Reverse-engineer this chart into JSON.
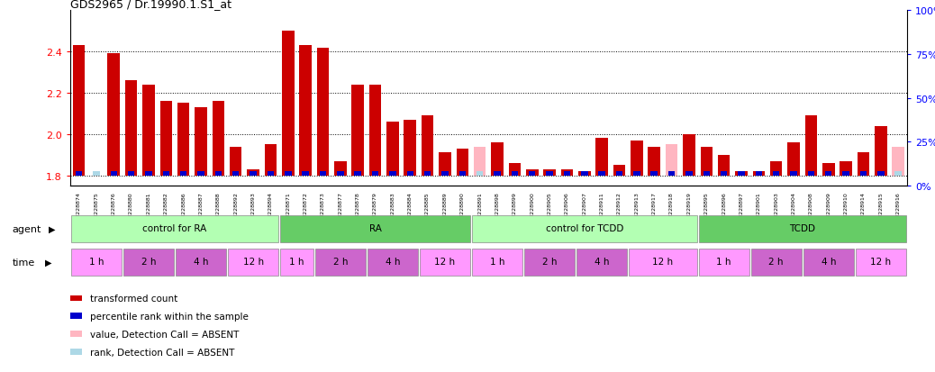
{
  "title": "GDS2965 / Dr.19990.1.S1_at",
  "samples": [
    "GSM228874",
    "GSM228875",
    "GSM228876",
    "GSM228880",
    "GSM228881",
    "GSM228882",
    "GSM228886",
    "GSM228887",
    "GSM228888",
    "GSM228892",
    "GSM228893",
    "GSM228894",
    "GSM228871",
    "GSM228872",
    "GSM228873",
    "GSM228877",
    "GSM228878",
    "GSM228879",
    "GSM228883",
    "GSM228884",
    "GSM228885",
    "GSM228889",
    "GSM228890",
    "GSM228891",
    "GSM228898",
    "GSM228899",
    "GSM228900",
    "GSM228905",
    "GSM228906",
    "GSM228907",
    "GSM228911",
    "GSM228912",
    "GSM228913",
    "GSM228917",
    "GSM228918",
    "GSM228919",
    "GSM228895",
    "GSM228896",
    "GSM228897",
    "GSM228901",
    "GSM228903",
    "GSM228904",
    "GSM228908",
    "GSM228909",
    "GSM228910",
    "GSM228914",
    "GSM228915",
    "GSM228916"
  ],
  "red_values": [
    2.43,
    1.8,
    2.39,
    2.26,
    2.24,
    2.16,
    2.15,
    2.13,
    2.16,
    1.94,
    1.83,
    1.95,
    2.5,
    2.43,
    2.42,
    1.87,
    2.24,
    2.24,
    2.06,
    2.07,
    2.09,
    1.91,
    1.93,
    1.94,
    1.96,
    1.86,
    1.83,
    1.83,
    1.83,
    1.82,
    1.98,
    1.85,
    1.97,
    1.94,
    1.95,
    2.0,
    1.94,
    1.9,
    1.82,
    1.82,
    1.87,
    1.96,
    2.09,
    1.86,
    1.87,
    1.91,
    2.04,
    1.94
  ],
  "absent_red": [
    false,
    true,
    false,
    false,
    false,
    false,
    false,
    false,
    false,
    false,
    false,
    false,
    false,
    false,
    false,
    false,
    false,
    false,
    false,
    false,
    false,
    false,
    false,
    true,
    false,
    false,
    false,
    false,
    false,
    false,
    false,
    false,
    false,
    false,
    true,
    false,
    false,
    false,
    false,
    false,
    false,
    false,
    false,
    false,
    false,
    false,
    false,
    true
  ],
  "absent_blue": [
    false,
    true,
    false,
    false,
    false,
    false,
    false,
    false,
    false,
    false,
    false,
    false,
    false,
    false,
    false,
    false,
    false,
    false,
    false,
    false,
    false,
    false,
    false,
    true,
    false,
    false,
    false,
    false,
    false,
    false,
    false,
    false,
    false,
    false,
    false,
    false,
    false,
    false,
    false,
    false,
    false,
    false,
    false,
    false,
    false,
    false,
    false,
    true
  ],
  "blue_percentile": [
    5,
    5,
    5,
    5,
    5,
    5,
    5,
    5,
    5,
    5,
    5,
    5,
    5,
    5,
    5,
    5,
    5,
    5,
    5,
    5,
    5,
    5,
    5,
    5,
    5,
    5,
    5,
    5,
    5,
    5,
    5,
    5,
    5,
    5,
    5,
    5,
    5,
    5,
    5,
    5,
    5,
    5,
    5,
    5,
    5,
    5,
    5,
    5
  ],
  "ylim_left": [
    1.75,
    2.6
  ],
  "ylim_right": [
    0,
    100
  ],
  "yticks_left": [
    1.8,
    2.0,
    2.2,
    2.4
  ],
  "yticks_right": [
    0,
    25,
    50,
    75,
    100
  ],
  "bar_base": 1.8,
  "bar_width": 0.7,
  "agent_groups": [
    {
      "label": "control for RA",
      "start": 0,
      "end": 12
    },
    {
      "label": "RA",
      "start": 12,
      "end": 23
    },
    {
      "label": "control for TCDD",
      "start": 23,
      "end": 36
    },
    {
      "label": "TCDD",
      "start": 36,
      "end": 48
    }
  ],
  "time_groups": [
    {
      "label": "1 h",
      "start": 0,
      "end": 3,
      "shade": 0
    },
    {
      "label": "2 h",
      "start": 3,
      "end": 6,
      "shade": 1
    },
    {
      "label": "4 h",
      "start": 6,
      "end": 9,
      "shade": 1
    },
    {
      "label": "12 h",
      "start": 9,
      "end": 12,
      "shade": 0
    },
    {
      "label": "1 h",
      "start": 12,
      "end": 14,
      "shade": 0
    },
    {
      "label": "2 h",
      "start": 14,
      "end": 17,
      "shade": 1
    },
    {
      "label": "4 h",
      "start": 17,
      "end": 20,
      "shade": 1
    },
    {
      "label": "12 h",
      "start": 20,
      "end": 23,
      "shade": 0
    },
    {
      "label": "1 h",
      "start": 23,
      "end": 26,
      "shade": 0
    },
    {
      "label": "2 h",
      "start": 26,
      "end": 29,
      "shade": 1
    },
    {
      "label": "4 h",
      "start": 29,
      "end": 32,
      "shade": 1
    },
    {
      "label": "12 h",
      "start": 32,
      "end": 36,
      "shade": 0
    },
    {
      "label": "1 h",
      "start": 36,
      "end": 39,
      "shade": 0
    },
    {
      "label": "2 h",
      "start": 39,
      "end": 42,
      "shade": 1
    },
    {
      "label": "4 h",
      "start": 42,
      "end": 45,
      "shade": 1
    },
    {
      "label": "12 h",
      "start": 45,
      "end": 48,
      "shade": 0
    }
  ],
  "agent_color_light": "#b3ffb3",
  "agent_color_dark": "#66cc66",
  "time_color_light": "#ff99ff",
  "time_color_dark": "#cc66cc",
  "legend_items": [
    {
      "color": "#cc0000",
      "label": "transformed count"
    },
    {
      "color": "#0000cc",
      "label": "percentile rank within the sample"
    },
    {
      "color": "#ffb6c1",
      "label": "value, Detection Call = ABSENT"
    },
    {
      "color": "#add8e6",
      "label": "rank, Detection Call = ABSENT"
    }
  ]
}
